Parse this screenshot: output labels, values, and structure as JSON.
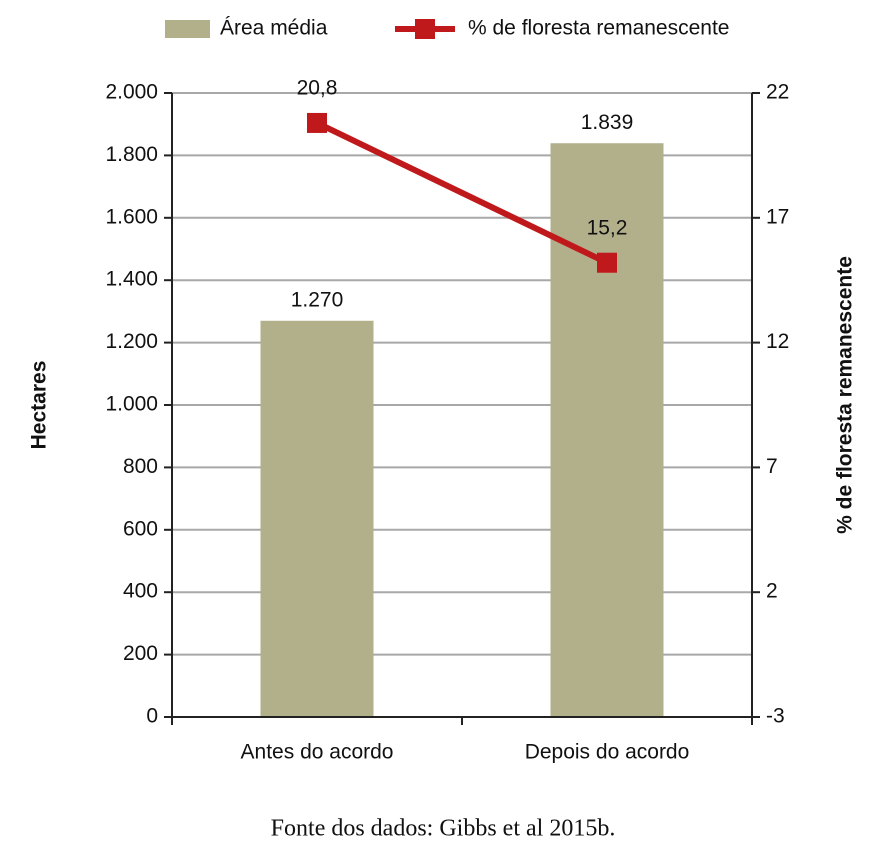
{
  "chart_data": {
    "type": "bar",
    "categories": [
      "Antes do acordo",
      "Depois do acordo"
    ],
    "series": [
      {
        "name": "Área média",
        "type": "bar",
        "color": "#b2b08b",
        "values": [
          1270,
          1839
        ],
        "value_labels": [
          "1.270",
          "1.839"
        ]
      },
      {
        "name": "% de floresta remanescente",
        "type": "line",
        "axis": "y2",
        "color": "#c0191c",
        "values": [
          20.8,
          15.2
        ],
        "value_labels": [
          "20,8",
          "15,2"
        ]
      }
    ],
    "ylabel": "Hectares",
    "y2label": "% de floresta remanescente",
    "ylim": [
      0,
      2000
    ],
    "yticks": [
      0,
      200,
      400,
      600,
      800,
      {
        "value": 1000,
        "label": "1.000"
      },
      {
        "value": 1200,
        "label": "1.200"
      },
      {
        "value": 1400,
        "label": "1.400"
      },
      {
        "value": 1600,
        "label": "1.600"
      },
      {
        "value": 1800,
        "label": "1.800"
      },
      {
        "value": 2000,
        "label": "2.000"
      }
    ],
    "y2lim": [
      -3,
      22
    ],
    "y2ticks": [
      -3,
      2,
      7,
      12,
      17,
      22
    ],
    "grid": true,
    "legend": "top",
    "source": "Fonte dos dados: Gibbs et al 2015b."
  }
}
